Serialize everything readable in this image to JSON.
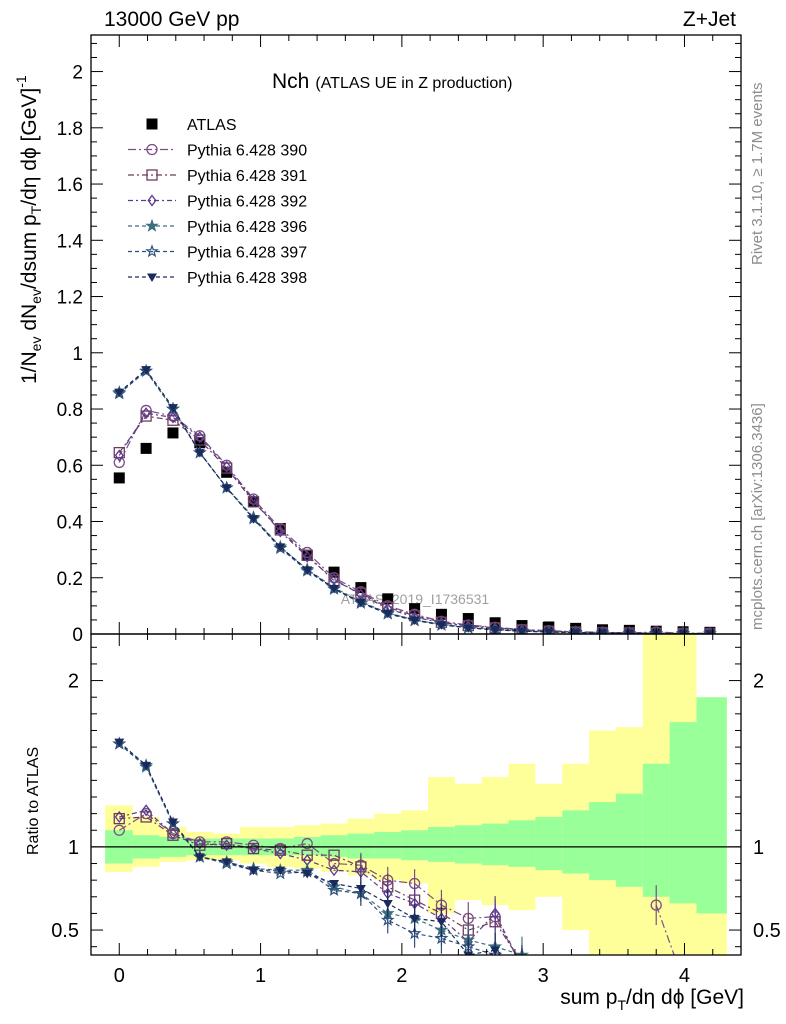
{
  "header": {
    "left": "13000 GeV pp",
    "right": "Z+Jet"
  },
  "side": {
    "rivet_pre": "Rivet 3.1.10, ",
    "rivet_ge": "≥",
    "rivet_post": " 1.7M events",
    "mcplots": "mcplots.cern.ch [arXiv:1306.3436]"
  },
  "watermark": "ATLAS_2019_I1736531",
  "title_main": "Nch",
  "title_sub": "(ATLAS UE in Z production)",
  "yaxis_main": {
    "p1": "1/N",
    "s1": "ev",
    "p2": " dN",
    "s2": "ev",
    "p3": "/dsum p",
    "s3": "T",
    "p4": "/dη dϕ  [GeV]",
    "sup": "-1"
  },
  "yaxis_ratio": "Ratio to ATLAS",
  "xaxis": {
    "p1": "sum p",
    "s1": "T",
    "p2": "/dη dϕ [GeV]"
  },
  "legend": [
    "ATLAS",
    "Pythia 6.428 390",
    "Pythia 6.428 391",
    "Pythia 6.428 392",
    "Pythia 6.428 396",
    "Pythia 6.428 397",
    "Pythia 6.428 398"
  ],
  "chart_data": {
    "type": "scatter",
    "title": "Nch (ATLAS UE in Z production)",
    "xlabel": "sum pT/dη dϕ [GeV]",
    "ylabel": "1/Nev dNev/dsum pT/dη dϕ [GeV]^-1",
    "xlim": [
      -0.2,
      4.4
    ],
    "ylim": [
      0,
      2.13
    ],
    "ratio_ylim": [
      0.35,
      2.28
    ],
    "x": [
      0.0,
      0.19,
      0.38,
      0.57,
      0.76,
      0.95,
      1.14,
      1.33,
      1.52,
      1.71,
      1.9,
      2.09,
      2.28,
      2.47,
      2.66,
      2.85,
      3.04,
      3.23,
      3.42,
      3.61,
      3.8,
      3.99,
      4.18
    ],
    "x_ticks": [
      0,
      1,
      2,
      3,
      4
    ],
    "y_ticks": [
      0,
      0.2,
      0.4,
      0.6,
      0.8,
      1,
      1.2,
      1.4,
      1.6,
      1.8,
      2
    ],
    "ratio_ticks": [
      0.5,
      1,
      2
    ],
    "series": [
      {
        "name": "ATLAS",
        "color": "#000000",
        "marker": "square-filled",
        "values": [
          0.555,
          0.66,
          0.715,
          0.68,
          0.575,
          0.47,
          0.375,
          0.28,
          0.22,
          0.165,
          0.125,
          0.09,
          0.07,
          0.055,
          0.04,
          0.03,
          0.025,
          0.02,
          0.015,
          0.013,
          0.01,
          0.008,
          0.006
        ]
      },
      {
        "name": "Pythia 6.428 390",
        "color": "#7b4f85",
        "marker": "circle-open",
        "values": [
          0.61,
          0.795,
          0.775,
          0.705,
          0.6,
          0.48,
          0.375,
          0.29,
          0.2,
          0.15,
          0.1,
          0.07,
          0.045,
          0.032,
          0.024,
          0.016,
          0.012,
          0.008,
          0.006,
          0.004,
          0.007,
          0.003,
          0.002
        ],
        "ratio": [
          1.1,
          1.2,
          1.08,
          1.03,
          1.03,
          1.01,
          0.99,
          1.02,
          0.9,
          0.89,
          0.8,
          0.78,
          0.65,
          0.57,
          0.58,
          0.28,
          null,
          null,
          null,
          null,
          0.65,
          0.2,
          null
        ]
      },
      {
        "name": "Pythia 6.428 391",
        "color": "#6e3d5e",
        "marker": "square-open",
        "values": [
          0.645,
          0.775,
          0.76,
          0.69,
          0.59,
          0.47,
          0.37,
          0.28,
          0.19,
          0.145,
          0.095,
          0.065,
          0.042,
          0.03,
          0.022,
          0.015,
          0.01,
          0.007,
          0.005,
          0.004,
          0.003,
          0.002,
          0.002
        ],
        "ratio": [
          1.17,
          1.18,
          1.07,
          1.01,
          1.02,
          0.99,
          0.98,
          0.95,
          0.95,
          0.88,
          0.76,
          0.68,
          0.6,
          0.5,
          0.55,
          0.3,
          null,
          null,
          null,
          null,
          null,
          null,
          null
        ]
      },
      {
        "name": "Pythia 6.428 392",
        "color": "#5b3a8f",
        "marker": "diamond-open",
        "values": [
          0.635,
          0.785,
          0.77,
          0.7,
          0.595,
          0.475,
          0.365,
          0.275,
          0.195,
          0.14,
          0.09,
          0.06,
          0.04,
          0.028,
          0.02,
          0.014,
          0.01,
          0.007,
          0.005,
          0.004,
          0.003,
          0.002,
          0.001
        ],
        "ratio": [
          1.18,
          1.22,
          1.08,
          1.02,
          1.01,
          0.99,
          0.96,
          0.92,
          0.86,
          0.85,
          0.72,
          0.66,
          0.57,
          0.43,
          0.6,
          0.28,
          null,
          null,
          null,
          null,
          null,
          null,
          null
        ]
      },
      {
        "name": "Pythia 6.428 396",
        "color": "#3f6f7f",
        "marker": "star-filled",
        "values": [
          0.86,
          0.935,
          0.8,
          0.645,
          0.52,
          0.415,
          0.31,
          0.23,
          0.165,
          0.115,
          0.075,
          0.05,
          0.034,
          0.024,
          0.016,
          0.011,
          0.008,
          0.006,
          0.004,
          0.003,
          0.002,
          0.002,
          0.001
        ],
        "ratio": [
          1.62,
          1.48,
          1.14,
          0.94,
          0.91,
          0.87,
          0.86,
          0.86,
          0.76,
          0.72,
          0.6,
          0.57,
          0.5,
          0.44,
          0.4,
          0.35,
          null,
          null,
          null,
          null,
          null,
          null,
          null
        ]
      },
      {
        "name": "Pythia 6.428 397",
        "color": "#2e4f7a",
        "marker": "star-open",
        "values": [
          0.855,
          0.935,
          0.8,
          0.645,
          0.52,
          0.41,
          0.305,
          0.225,
          0.16,
          0.11,
          0.072,
          0.048,
          0.032,
          0.022,
          0.015,
          0.01,
          0.007,
          0.005,
          0.004,
          0.003,
          0.002,
          0.001,
          0.001
        ],
        "ratio": [
          1.62,
          1.49,
          1.14,
          0.94,
          0.9,
          0.86,
          0.84,
          0.85,
          0.74,
          0.72,
          0.56,
          0.48,
          0.45,
          0.4,
          0.35,
          0.3,
          null,
          null,
          null,
          null,
          null,
          null,
          null
        ]
      },
      {
        "name": "Pythia 6.428 398",
        "color": "#1b2a5c",
        "marker": "triangle-down-filled",
        "values": [
          0.86,
          0.94,
          0.805,
          0.645,
          0.52,
          0.41,
          0.31,
          0.228,
          0.162,
          0.112,
          0.074,
          0.05,
          0.033,
          0.022,
          0.015,
          0.01,
          0.007,
          0.005,
          0.004,
          0.003,
          0.002,
          0.001,
          0.001
        ],
        "ratio": [
          1.63,
          1.49,
          1.15,
          0.94,
          0.91,
          0.86,
          0.86,
          0.84,
          0.78,
          0.75,
          0.66,
          0.57,
          0.55,
          0.35,
          0.38,
          0.28,
          null,
          null,
          null,
          null,
          null,
          null,
          null
        ]
      }
    ],
    "uncertainty_bands": {
      "x_edges": [
        -0.1,
        0.095,
        0.285,
        0.475,
        0.665,
        0.855,
        1.045,
        1.235,
        1.425,
        1.615,
        1.805,
        1.995,
        2.185,
        2.375,
        2.565,
        2.755,
        2.945,
        3.135,
        3.325,
        3.515,
        3.705,
        3.895,
        4.085,
        4.3
      ],
      "inner": [
        [
          0.9,
          1.1
        ],
        [
          0.93,
          1.07
        ],
        [
          0.94,
          1.06
        ],
        [
          0.95,
          1.05
        ],
        [
          0.95,
          1.05
        ],
        [
          0.95,
          1.05
        ],
        [
          0.95,
          1.05
        ],
        [
          0.95,
          1.06
        ],
        [
          0.94,
          1.07
        ],
        [
          0.93,
          1.08
        ],
        [
          0.93,
          1.09
        ],
        [
          0.92,
          1.1
        ],
        [
          0.91,
          1.12
        ],
        [
          0.9,
          1.13
        ],
        [
          0.89,
          1.14
        ],
        [
          0.88,
          1.16
        ],
        [
          0.86,
          1.18
        ],
        [
          0.84,
          1.22
        ],
        [
          0.8,
          1.27
        ],
        [
          0.76,
          1.32
        ],
        [
          0.7,
          1.5
        ],
        [
          0.66,
          1.75
        ],
        [
          0.6,
          1.9
        ]
      ],
      "outer": [
        [
          0.85,
          1.25
        ],
        [
          0.88,
          1.18
        ],
        [
          0.91,
          1.12
        ],
        [
          0.92,
          1.09
        ],
        [
          0.92,
          1.08
        ],
        [
          0.9,
          1.12
        ],
        [
          0.88,
          1.12
        ],
        [
          0.87,
          1.13
        ],
        [
          0.85,
          1.14
        ],
        [
          0.83,
          1.17
        ],
        [
          0.8,
          1.2
        ],
        [
          0.78,
          1.22
        ],
        [
          0.6,
          1.42
        ],
        [
          0.68,
          1.38
        ],
        [
          0.65,
          1.42
        ],
        [
          0.62,
          1.5
        ],
        [
          0.7,
          1.38
        ],
        [
          0.5,
          1.5
        ],
        [
          0.35,
          1.7
        ],
        [
          0.35,
          1.72
        ],
        [
          0.35,
          2.3
        ],
        [
          0.35,
          2.3
        ],
        [
          0.35,
          1.88
        ]
      ],
      "inner_color": "#99ff99",
      "outer_color": "#ffff99"
    }
  }
}
